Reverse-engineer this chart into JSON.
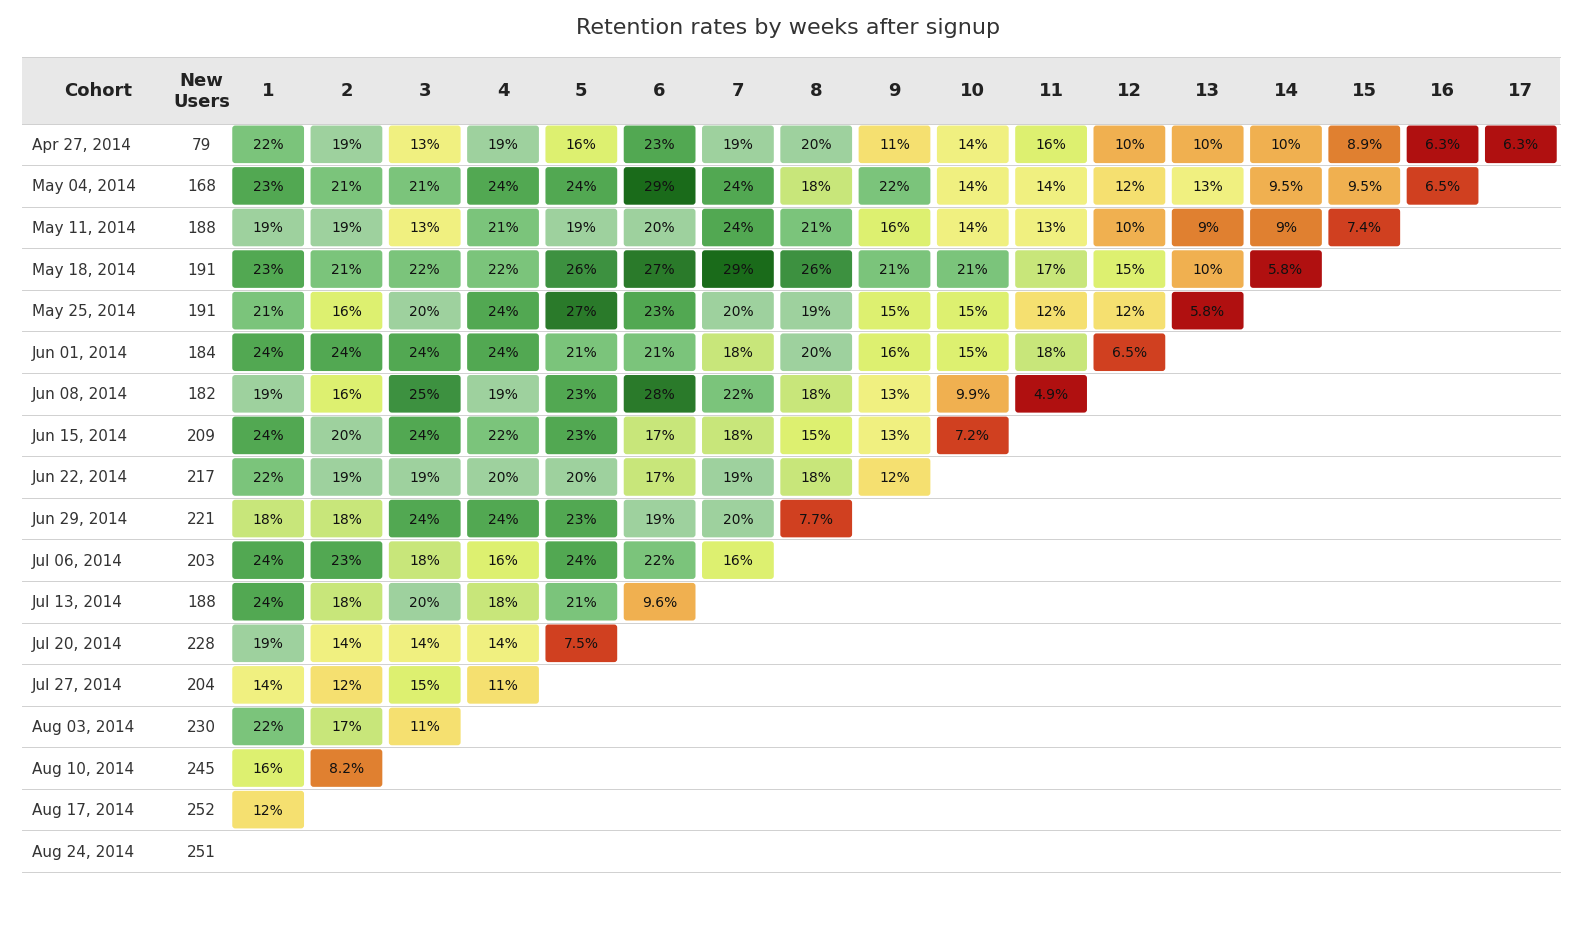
{
  "title": "Retention rates by weeks after signup",
  "cohorts": [
    "Apr 27, 2014",
    "May 04, 2014",
    "May 11, 2014",
    "May 18, 2014",
    "May 25, 2014",
    "Jun 01, 2014",
    "Jun 08, 2014",
    "Jun 15, 2014",
    "Jun 22, 2014",
    "Jun 29, 2014",
    "Jul 06, 2014",
    "Jul 13, 2014",
    "Jul 20, 2014",
    "Jul 27, 2014",
    "Aug 03, 2014",
    "Aug 10, 2014",
    "Aug 17, 2014",
    "Aug 24, 2014"
  ],
  "new_users": [
    79,
    168,
    188,
    191,
    191,
    184,
    182,
    209,
    217,
    221,
    203,
    188,
    228,
    204,
    230,
    245,
    252,
    251
  ],
  "data": [
    [
      22,
      19,
      13,
      19,
      16,
      23,
      19,
      20,
      11,
      14,
      16,
      10,
      10,
      10,
      8.9,
      6.3,
      6.3
    ],
    [
      23,
      21,
      21,
      24,
      24,
      29,
      24,
      18,
      22,
      14,
      14,
      12,
      13,
      9.5,
      9.5,
      6.5,
      null
    ],
    [
      19,
      19,
      13,
      21,
      19,
      20,
      24,
      21,
      16,
      14,
      13,
      10,
      9.0,
      9.0,
      7.4,
      null,
      null
    ],
    [
      23,
      21,
      22,
      22,
      26,
      27,
      29,
      26,
      21,
      21,
      17,
      15,
      10,
      5.8,
      null,
      null,
      null
    ],
    [
      21,
      16,
      20,
      24,
      27,
      23,
      20,
      19,
      15,
      15,
      12,
      12,
      5.8,
      null,
      null,
      null,
      null
    ],
    [
      24,
      24,
      24,
      24,
      21,
      21,
      18,
      20,
      16,
      15,
      18,
      6.5,
      null,
      null,
      null,
      null,
      null
    ],
    [
      19,
      16,
      25,
      19,
      23,
      28,
      22,
      18,
      13,
      9.9,
      4.9,
      null,
      null,
      null,
      null,
      null,
      null
    ],
    [
      24,
      20,
      24,
      22,
      23,
      17,
      18,
      15,
      13,
      7.2,
      null,
      null,
      null,
      null,
      null,
      null,
      null
    ],
    [
      22,
      19,
      19,
      20,
      20,
      17,
      19,
      18,
      12,
      null,
      null,
      null,
      null,
      null,
      null,
      null,
      null
    ],
    [
      18,
      18,
      24,
      24,
      23,
      19,
      20,
      7.7,
      null,
      null,
      null,
      null,
      null,
      null,
      null,
      null,
      null
    ],
    [
      24,
      23,
      18,
      16,
      24,
      22,
      16,
      null,
      null,
      null,
      null,
      null,
      null,
      null,
      null,
      null,
      null
    ],
    [
      24,
      18,
      20,
      18,
      21,
      9.6,
      null,
      null,
      null,
      null,
      null,
      null,
      null,
      null,
      null,
      null,
      null
    ],
    [
      19,
      14,
      14,
      14,
      7.5,
      null,
      null,
      null,
      null,
      null,
      null,
      null,
      null,
      null,
      null,
      null,
      null
    ],
    [
      14,
      12,
      15,
      11,
      null,
      null,
      null,
      null,
      null,
      null,
      null,
      null,
      null,
      null,
      null,
      null,
      null
    ],
    [
      22,
      17,
      11,
      null,
      null,
      null,
      null,
      null,
      null,
      null,
      null,
      null,
      null,
      null,
      null,
      null,
      null
    ],
    [
      16,
      8.2,
      null,
      null,
      null,
      null,
      null,
      null,
      null,
      null,
      null,
      null,
      null,
      null,
      null,
      null,
      null
    ],
    [
      12,
      null,
      null,
      null,
      null,
      null,
      null,
      null,
      null,
      null,
      null,
      null,
      null,
      null,
      null,
      null,
      null
    ],
    [
      null,
      null,
      null,
      null,
      null,
      null,
      null,
      null,
      null,
      null,
      null,
      null,
      null,
      null,
      null,
      null,
      null
    ]
  ],
  "week_cols": [
    1,
    2,
    3,
    4,
    5,
    6,
    7,
    8,
    9,
    10,
    11,
    12,
    13,
    14,
    15,
    16,
    17
  ],
  "background_color": "#ffffff",
  "header_bg": "#e8e8e8",
  "title_fontsize": 16,
  "header_fontsize": 13,
  "cell_fontsize": 10,
  "cohort_fontsize": 11,
  "color_thresholds": [
    29,
    27,
    25,
    23,
    21,
    19,
    17,
    15,
    13,
    11,
    9.5,
    8.0,
    6.5,
    0
  ],
  "color_values": [
    "#1a6b1a",
    "#2a7a2a",
    "#3d9140",
    "#52a852",
    "#7bc47b",
    "#9ed19e",
    "#c8e67a",
    "#ddf070",
    "#f0f080",
    "#f5e070",
    "#f0b050",
    "#e08030",
    "#d04020",
    "#b01010"
  ]
}
